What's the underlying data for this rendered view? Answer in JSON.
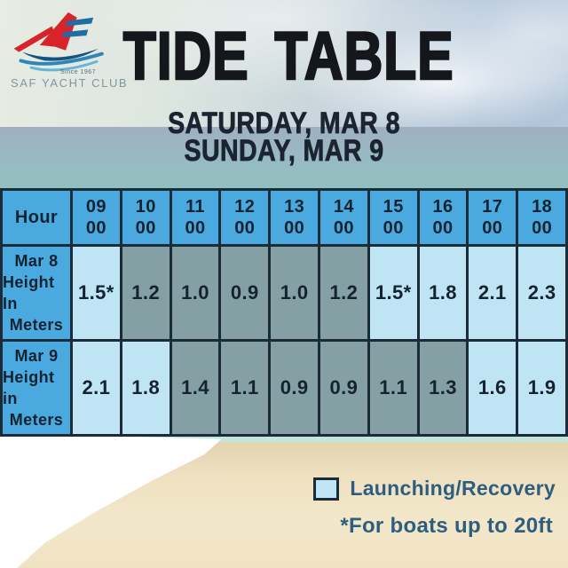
{
  "logo": {
    "since": "Since 1967",
    "club_name": "SAF YACHT CLUB"
  },
  "title": "TIDE TABLE",
  "subtitle": {
    "line1": "SATURDAY, MAR 8",
    "line2": "SUNDAY, MAR 9"
  },
  "table": {
    "corner_label": "Hour",
    "hours": [
      {
        "hh": "09",
        "mm": "00"
      },
      {
        "hh": "10",
        "mm": "00"
      },
      {
        "hh": "11",
        "mm": "00"
      },
      {
        "hh": "12",
        "mm": "00"
      },
      {
        "hh": "13",
        "mm": "00"
      },
      {
        "hh": "14",
        "mm": "00"
      },
      {
        "hh": "15",
        "mm": "00"
      },
      {
        "hh": "16",
        "mm": "00"
      },
      {
        "hh": "17",
        "mm": "00"
      },
      {
        "hh": "18",
        "mm": "00"
      }
    ],
    "rows": [
      {
        "label_lines": [
          "Mar 8",
          "Height In",
          "Meters"
        ],
        "cells": [
          {
            "value": "1.5*",
            "launch": true
          },
          {
            "value": "1.2",
            "launch": false
          },
          {
            "value": "1.0",
            "launch": false
          },
          {
            "value": "0.9",
            "launch": false
          },
          {
            "value": "1.0",
            "launch": false
          },
          {
            "value": "1.2",
            "launch": false
          },
          {
            "value": "1.5*",
            "launch": true
          },
          {
            "value": "1.8",
            "launch": true
          },
          {
            "value": "2.1",
            "launch": true
          },
          {
            "value": "2.3",
            "launch": true
          }
        ]
      },
      {
        "label_lines": [
          "Mar 9",
          "Height in",
          "Meters"
        ],
        "cells": [
          {
            "value": "2.1",
            "launch": true
          },
          {
            "value": "1.8",
            "launch": true
          },
          {
            "value": "1.4",
            "launch": false
          },
          {
            "value": "1.1",
            "launch": false
          },
          {
            "value": "0.9",
            "launch": false
          },
          {
            "value": "0.9",
            "launch": false
          },
          {
            "value": "1.1",
            "launch": false
          },
          {
            "value": "1.3",
            "launch": false
          },
          {
            "value": "1.6",
            "launch": true
          },
          {
            "value": "1.9",
            "launch": true
          }
        ]
      }
    ]
  },
  "legend": {
    "swatch_label": "Launching/Recovery",
    "note": "*For boats up to 20ft"
  },
  "colors": {
    "header_blue": "#4aa9de",
    "launch_blue": "#bfe4f3",
    "non_launch_gray": "#85a0a4",
    "table_border": "#1c2b38",
    "table_text": "#152330",
    "legend_text": "#2d5e80",
    "title_black": "#14171c"
  }
}
